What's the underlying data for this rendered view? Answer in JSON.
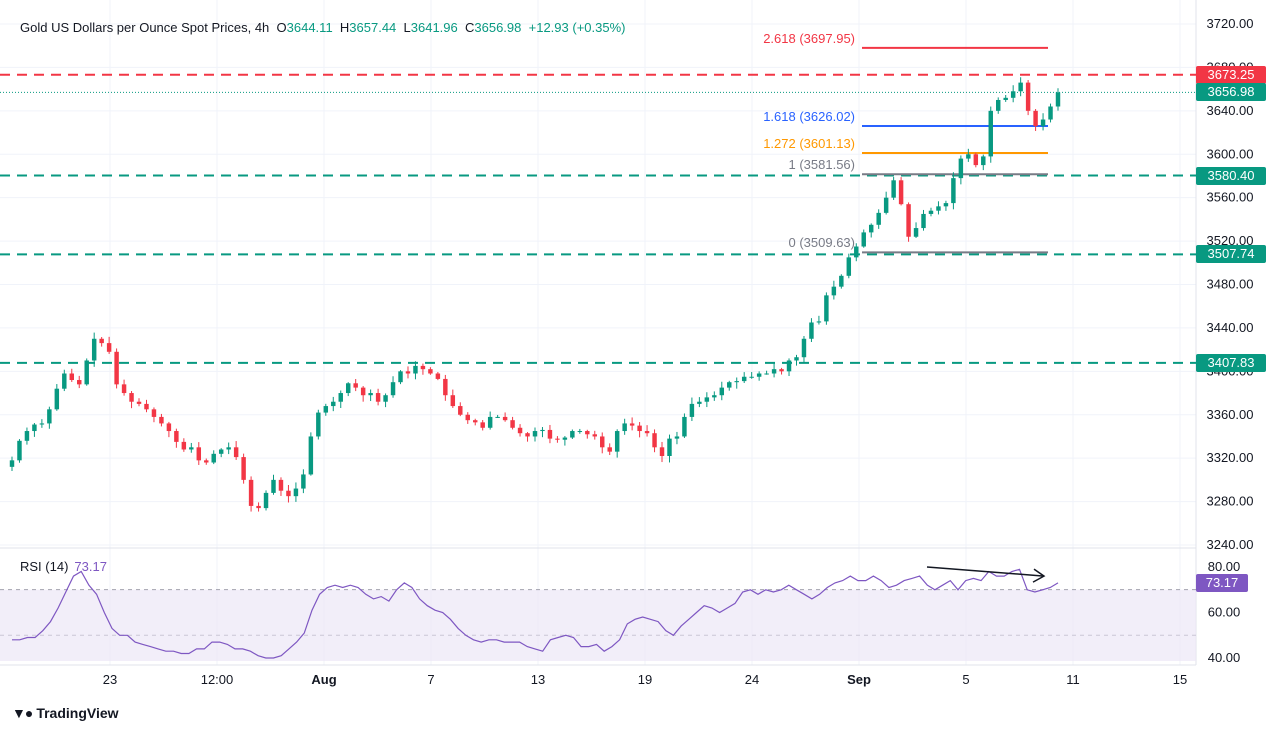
{
  "header": {
    "title": "Gold US Dollars per Ounce Spot Prices, 4h",
    "o_label": "O",
    "o_value": "3644.11",
    "h_label": "H",
    "h_value": "3657.44",
    "l_label": "L",
    "l_value": "3641.96",
    "c_label": "C",
    "c_value": "3656.98",
    "change": "+12.93 (+0.35%)"
  },
  "rsi": {
    "label": "RSI (14)",
    "value": "73.17"
  },
  "brand": {
    "name": "TradingView",
    "logo_icon": "tradingview-logo-icon"
  },
  "price_tags": [
    {
      "text": "3673.25",
      "color": "#f23645"
    },
    {
      "text": "3656.98",
      "color": "#089981"
    },
    {
      "text": "3580.40",
      "color": "#089981"
    },
    {
      "text": "3507.74",
      "color": "#089981"
    },
    {
      "text": "3407.83",
      "color": "#089981"
    },
    {
      "text": "73.17",
      "color": "#7e57c2"
    }
  ],
  "fib_labels": [
    {
      "text": "2.618 (3697.95)",
      "color": "#f23645"
    },
    {
      "text": "1.618 (3626.02)",
      "color": "#2962ff"
    },
    {
      "text": "1.272 (3601.13)",
      "color": "#ff9800"
    },
    {
      "text": "1 (3581.56)",
      "color": "#787b86"
    },
    {
      "text": "0 (3509.63)",
      "color": "#787b86"
    }
  ],
  "colors": {
    "up": "#089981",
    "down": "#f23645",
    "rsi": "#7e57c2",
    "grid": "#f0f3fa",
    "axis_text": "#131722",
    "rsi_band": "#ede7f6"
  },
  "chart_data": {
    "type": "candlestick",
    "title": "Gold US Dollars per Ounce Spot Prices, 4h",
    "ylim": [
      3240,
      3720
    ],
    "y_ticks": [
      "3720.00",
      "3680.00",
      "3640.00",
      "3600.00",
      "3560.00",
      "3520.00",
      "3480.00",
      "3440.00",
      "3400.00",
      "3360.00",
      "3320.00",
      "3280.00",
      "3240.00"
    ],
    "x_ticks": [
      "23",
      "12:00",
      "Aug",
      "7",
      "13",
      "19",
      "24",
      "Sep",
      "5",
      "11",
      "15"
    ],
    "horizontal_levels": [
      {
        "value": 3673.25,
        "style": "dashed",
        "color": "#f23645"
      },
      {
        "value": 3580.4,
        "style": "dashed",
        "color": "#089981"
      },
      {
        "value": 3507.74,
        "style": "dashed",
        "color": "#089981"
      },
      {
        "value": 3407.83,
        "style": "dashed",
        "color": "#089981"
      },
      {
        "value": 3656.98,
        "style": "dotted",
        "color": "#089981"
      }
    ],
    "fibonacci": [
      {
        "ratio": 2.618,
        "value": 3697.95,
        "color": "#f23645"
      },
      {
        "ratio": 1.618,
        "value": 3626.02,
        "color": "#2962ff"
      },
      {
        "ratio": 1.272,
        "value": 3601.13,
        "color": "#ff9800"
      },
      {
        "ratio": 1,
        "value": 3581.56,
        "color": "#787b86"
      },
      {
        "ratio": 0,
        "value": 3509.63,
        "color": "#787b86"
      }
    ],
    "price_close": [
      3318,
      3336,
      3345,
      3351,
      3352,
      3365,
      3384,
      3398,
      3392,
      3388,
      3410,
      3430,
      3426,
      3418,
      3388,
      3380,
      3372,
      3370,
      3365,
      3358,
      3352,
      3345,
      3335,
      3328,
      3330,
      3318,
      3316,
      3324,
      3328,
      3330,
      3321,
      3300,
      3276,
      3274,
      3288,
      3300,
      3290,
      3285,
      3292,
      3305,
      3340,
      3362,
      3368,
      3372,
      3380,
      3389,
      3385,
      3378,
      3380,
      3372,
      3378,
      3390,
      3400,
      3398,
      3405,
      3402,
      3398,
      3393,
      3378,
      3368,
      3360,
      3355,
      3353,
      3348,
      3358,
      3358,
      3355,
      3348,
      3343,
      3340,
      3345,
      3346,
      3338,
      3337,
      3339,
      3345,
      3345,
      3342,
      3340,
      3330,
      3326,
      3345,
      3352,
      3350,
      3345,
      3343,
      3330,
      3322,
      3338,
      3340,
      3358,
      3370,
      3372,
      3376,
      3378,
      3385,
      3390,
      3391,
      3395,
      3395,
      3398,
      3398,
      3402,
      3400,
      3410,
      3413,
      3430,
      3445,
      3446,
      3470,
      3478,
      3488,
      3505,
      3515,
      3528,
      3535,
      3546,
      3560,
      3576,
      3554,
      3524,
      3532,
      3545,
      3548,
      3552,
      3555,
      3578,
      3596,
      3600,
      3590,
      3598,
      3640,
      3650,
      3652,
      3658,
      3666,
      3640,
      3626,
      3632,
      3644,
      3657
    ],
    "rsi": {
      "ylim": [
        40,
        80
      ],
      "y_ticks": [
        "80.00",
        "60.00",
        "40.00"
      ],
      "bands": [
        70,
        50,
        30
      ],
      "values": [
        48,
        48,
        49,
        49,
        52,
        56,
        62,
        69,
        76,
        78,
        72,
        68,
        60,
        53,
        50,
        50,
        47,
        46,
        45,
        44,
        43,
        43,
        42,
        42,
        44,
        44,
        47,
        47,
        46,
        44,
        44,
        43,
        41,
        40,
        40,
        41,
        44,
        47,
        51,
        61,
        68,
        71,
        72,
        71,
        72,
        71,
        68,
        66,
        67,
        65,
        70,
        73,
        71,
        66,
        63,
        61,
        60,
        57,
        53,
        50,
        48,
        47,
        48,
        48,
        47,
        47,
        47,
        45,
        44,
        43,
        48,
        49,
        50,
        49,
        45,
        45,
        46,
        43,
        45,
        48,
        55,
        57,
        58,
        57,
        56,
        52,
        50,
        54,
        57,
        60,
        63,
        62,
        60,
        62,
        64,
        69,
        70,
        68,
        70,
        69,
        70,
        72,
        70,
        68,
        66,
        68,
        71,
        73,
        74,
        76,
        74,
        74,
        76,
        74,
        71,
        72,
        74,
        75,
        76,
        72,
        70,
        72,
        74,
        70,
        74,
        75,
        74,
        78,
        76,
        76,
        78,
        79,
        70,
        69,
        70,
        71,
        73
      ]
    },
    "rsi_divergence": {
      "from_value": 80,
      "to_value": 76
    }
  }
}
